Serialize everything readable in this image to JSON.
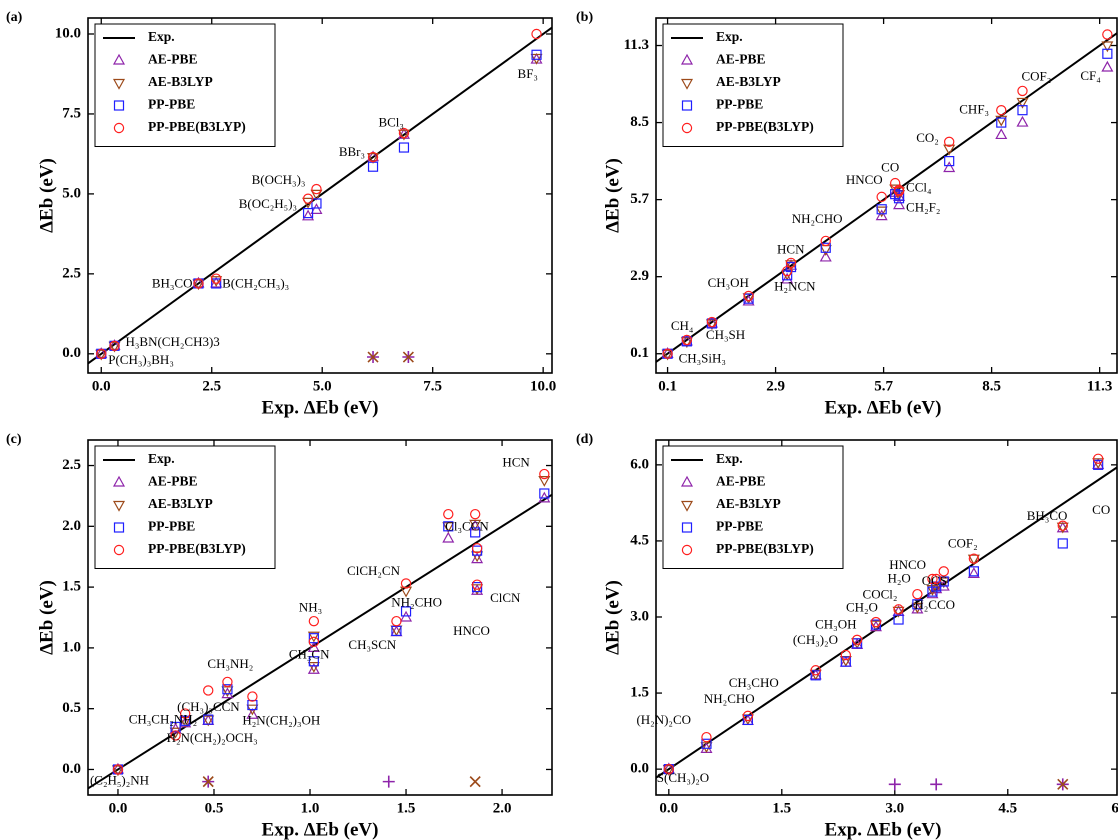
{
  "chart_data": [
    {
      "type": "scatter",
      "title": "(a)",
      "xlabel": "Exp. ΔEb (eV)",
      "ylabel": "ΔEb (eV)",
      "line_name": "Exp.",
      "legend": "upper left",
      "labels": [
        "P(CH₃)₃BH₃",
        "H₃BN(CH₂CH3)3",
        "BH₃CO",
        "B(CH₂CH₃)₃",
        "B(OC₂H₅)₃",
        "B(OCH₃)₃",
        "BBr₃",
        "BCl₃",
        "BF₃"
      ],
      "x": [
        0,
        0.3,
        2.2,
        2.6,
        4.68,
        4.87,
        6.15,
        6.85,
        9.85
      ],
      "series": [
        {
          "name": "AE-PBE",
          "color": "#8e24aa",
          "marker": "^",
          "values": [
            0,
            0.25,
            2.2,
            2.2,
            4.3,
            4.5,
            6.15,
            6.85,
            9.2
          ],
          "outliers": {
            "x": [
              6.15,
              6.95
            ],
            "y": [
              -0.1,
              -0.1
            ],
            "marker": "+"
          }
        },
        {
          "name": "AE-B3LYP",
          "color": "#9c4a1a",
          "marker": "v",
          "values": [
            0,
            0.25,
            2.2,
            2.3,
            4.75,
            5.0,
            6.15,
            6.88,
            9.25
          ],
          "outliers": {
            "x": [
              6.15,
              6.95
            ],
            "y": [
              -0.1,
              -0.1
            ],
            "marker": "x"
          }
        },
        {
          "name": "PP-PBE",
          "color": "#1f1fff",
          "marker": "s",
          "values": [
            0,
            0.25,
            2.2,
            2.2,
            4.4,
            4.7,
            5.85,
            6.45,
            9.35
          ]
        },
        {
          "name": "PP-PBE(B3LYP)",
          "color": "#ff1f1f",
          "marker": "o",
          "values": [
            0,
            0.25,
            2.2,
            2.35,
            4.85,
            5.15,
            6.15,
            6.9,
            10.0
          ]
        }
      ],
      "xlim": [
        -0.3,
        10.2
      ],
      "ylim": [
        -0.6,
        10.5
      ],
      "xticks": [
        {
          "value": 0,
          "label": "0.0"
        },
        2.5,
        {
          "value": 5,
          "label": "5.0"
        },
        7.5,
        {
          "value": 10,
          "label": "10.0"
        }
      ],
      "yticks": [
        {
          "value": 0,
          "label": "0.0"
        },
        2.5,
        {
          "value": 5,
          "label": "5.0"
        },
        7.5,
        {
          "value": 10,
          "label": "10.0"
        }
      ]
    },
    {
      "type": "scatter",
      "title": "(b)",
      "xlabel": "Exp. ΔEb (eV)",
      "ylabel": "ΔEb (eV)",
      "line_name": "Exp.",
      "legend": "upper left",
      "labels": [
        "CH₃SiH₃",
        "CH₄",
        "CH₃SH",
        "CH₃OH",
        "HCN",
        "H₂NCN",
        "NH₂CHO",
        "HNCO",
        "CO",
        "CCl₄",
        "CH₂F₂",
        "CO₂",
        "CHF₃",
        "COF₂",
        "CF₄"
      ],
      "x": [
        0.1,
        0.6,
        1.25,
        2.2,
        3.3,
        3.2,
        4.2,
        5.65,
        6.0,
        6.1,
        6.1,
        7.4,
        8.75,
        9.3,
        11.5
      ],
      "series": [
        {
          "name": "AE-PBE",
          "color": "#8e24aa",
          "marker": "^",
          "values": [
            0.1,
            0.55,
            1.2,
            2.0,
            3.3,
            2.8,
            3.6,
            5.1,
            5.95,
            5.8,
            5.5,
            6.85,
            8.05,
            8.5,
            10.5
          ]
        },
        {
          "name": "AE-B3LYP",
          "color": "#9c4a1a",
          "marker": "v",
          "values": [
            0.1,
            0.55,
            1.2,
            2.15,
            3.35,
            3.0,
            3.9,
            5.3,
            6.1,
            6.0,
            5.9,
            7.55,
            8.6,
            9.25,
            11.3
          ]
        },
        {
          "name": "PP-PBE",
          "color": "#1f1fff",
          "marker": "s",
          "values": [
            0.1,
            0.55,
            1.2,
            2.1,
            3.25,
            2.95,
            3.95,
            5.35,
            5.9,
            5.85,
            5.75,
            7.1,
            8.5,
            8.95,
            11.0
          ]
        },
        {
          "name": "PP-PBE(B3LYP)",
          "color": "#ff1f1f",
          "marker": "o",
          "values": [
            0.1,
            0.6,
            1.25,
            2.2,
            3.4,
            3.1,
            4.2,
            5.8,
            6.3,
            6.05,
            6.0,
            7.8,
            8.95,
            9.65,
            11.7
          ]
        }
      ],
      "xlim": [
        -0.2,
        11.75
      ],
      "ylim": [
        -0.6,
        12.3
      ],
      "xticks": [
        0.1,
        2.9,
        5.7,
        8.5,
        11.3
      ],
      "yticks": [
        0.1,
        2.9,
        5.7,
        8.5,
        11.3
      ]
    },
    {
      "type": "scatter",
      "title": "(c)",
      "xlabel": "Exp. ΔEb (eV)",
      "ylabel": "ΔEb (eV)",
      "line_name": "Exp.",
      "legend": "upper left",
      "labels": [
        "(C₂H₅)₂NH",
        "H₂N(CH₂)₂OCH₃",
        "(CH₃)₃CCN",
        "CH₃CH₂NH₂",
        "CH₃NH₂",
        "H₂N(CH₂)₃OH",
        "NH₃",
        "CH₃CN",
        "CH₃SCN",
        "ClCH₂CN",
        "NH₂CHO",
        "Cl₃CCN",
        "ClCN",
        "HNCO",
        "HCN"
      ],
      "x": [
        0,
        0.3,
        0.35,
        0.47,
        0.57,
        0.7,
        1.02,
        1.02,
        1.45,
        1.5,
        1.72,
        1.86,
        1.87,
        1.87,
        2.22
      ],
      "series": [
        {
          "name": "AE-PBE",
          "color": "#8e24aa",
          "marker": "^",
          "values": [
            0,
            0.33,
            0.38,
            0.4,
            0.62,
            0.45,
            1.0,
            0.82,
            1.13,
            1.25,
            1.9,
            2.0,
            1.73,
            1.47,
            2.23
          ],
          "outliers": {
            "x": [
              0.47,
              1.41
            ],
            "y": [
              -0.1,
              -0.1
            ],
            "marker": "+"
          }
        },
        {
          "name": "AE-B3LYP",
          "color": "#9c4a1a",
          "marker": "v",
          "values": [
            0,
            0.31,
            0.4,
            0.41,
            0.65,
            0.5,
            1.1,
            0.85,
            1.15,
            1.47,
            2.0,
            2.02,
            1.76,
            1.49,
            2.38
          ],
          "outliers": {
            "x": [
              0.47,
              1.86
            ],
            "y": [
              -0.1,
              -0.1
            ],
            "marker": "x"
          }
        },
        {
          "name": "PP-PBE",
          "color": "#1f1fff",
          "marker": "s",
          "values": [
            0,
            0.35,
            0.4,
            0.41,
            0.66,
            0.53,
            1.08,
            0.89,
            1.14,
            1.3,
            2.0,
            1.95,
            1.8,
            1.5,
            2.27
          ]
        },
        {
          "name": "PP-PBE(B3LYP)",
          "color": "#ff1f1f",
          "marker": "o",
          "values": [
            0,
            0.28,
            0.46,
            0.65,
            0.72,
            0.6,
            1.22,
            1.05,
            1.22,
            1.53,
            2.1,
            2.1,
            1.82,
            1.52,
            2.43
          ]
        }
      ],
      "xlim": [
        -0.156,
        2.26
      ],
      "ylim": [
        -0.21,
        2.71
      ],
      "xticks": [
        {
          "value": 0,
          "label": "0.0"
        },
        0.5,
        {
          "value": 1,
          "label": "1.0"
        },
        1.5,
        {
          "value": 2,
          "label": "2.0"
        }
      ],
      "yticks": [
        {
          "value": 0,
          "label": "0.0"
        },
        0.5,
        {
          "value": 1,
          "label": "1.0"
        },
        1.5,
        {
          "value": 2,
          "label": "2.0"
        },
        2.5
      ]
    },
    {
      "type": "scatter",
      "title": "(d)",
      "xlabel": "Exp. ΔEb (eV)",
      "ylabel": "ΔEb (eV)",
      "line_name": "Exp.",
      "legend": "upper left",
      "labels": [
        "S(CH₃)₂O",
        "(H₂N)₂CO",
        "NH₂CHO",
        "CH₃CHO",
        "(CH₃)₂O",
        "CH₃OH",
        "CH₂O",
        "COCl₂",
        "H₂CCO",
        "H₂O",
        "HNCO",
        "OCS",
        "COF₂",
        "BH₃CO",
        "CO"
      ],
      "x": [
        0,
        0.5,
        1.05,
        1.95,
        2.35,
        2.5,
        2.75,
        3.05,
        3.3,
        3.5,
        3.55,
        3.65,
        4.05,
        5.23,
        5.7
      ],
      "series": [
        {
          "name": "AE-PBE",
          "color": "#8e24aa",
          "marker": "^",
          "values": [
            0,
            0.4,
            0.95,
            1.85,
            2.1,
            2.45,
            2.8,
            3.1,
            3.15,
            3.45,
            3.55,
            3.6,
            3.85,
            4.75,
            6.0
          ],
          "outliers": {
            "x": [
              3.0,
              3.55,
              5.23
            ],
            "y": [
              -0.3,
              -0.3,
              -0.3
            ],
            "marker": "+"
          }
        },
        {
          "name": "AE-B3LYP",
          "color": "#9c4a1a",
          "marker": "v",
          "values": [
            0,
            0.45,
            1.0,
            1.88,
            2.15,
            2.5,
            2.85,
            3.12,
            3.2,
            3.55,
            3.6,
            3.7,
            4.15,
            4.78,
            6.05
          ],
          "outliers": {
            "x": [
              5.23
            ],
            "y": [
              -0.3
            ],
            "marker": "x"
          }
        },
        {
          "name": "PP-PBE",
          "color": "#1f1fff",
          "marker": "s",
          "values": [
            0,
            0.5,
            0.97,
            1.85,
            2.12,
            2.48,
            2.85,
            2.95,
            3.25,
            3.5,
            3.6,
            3.7,
            3.9,
            4.45,
            6.0
          ]
        },
        {
          "name": "PP-PBE(B3LYP)",
          "color": "#ff1f1f",
          "marker": "o",
          "values": [
            0,
            0.63,
            1.05,
            1.95,
            2.25,
            2.55,
            2.9,
            3.15,
            3.45,
            3.75,
            3.75,
            3.9,
            4.15,
            4.8,
            6.12
          ]
        }
      ],
      "xlim": [
        -0.17,
        5.95
      ],
      "ylim": [
        -0.51,
        6.49
      ],
      "xticks": [
        {
          "value": 0,
          "label": "0.0"
        },
        1.5,
        {
          "value": 3,
          "label": "3.0"
        },
        4.5,
        {
          "value": 6,
          "label": "6.0"
        }
      ],
      "yticks": [
        {
          "value": 0,
          "label": "0.0"
        },
        1.5,
        {
          "value": 3,
          "label": "3.0"
        },
        4.5,
        {
          "value": 6,
          "label": "6.0"
        }
      ]
    }
  ]
}
